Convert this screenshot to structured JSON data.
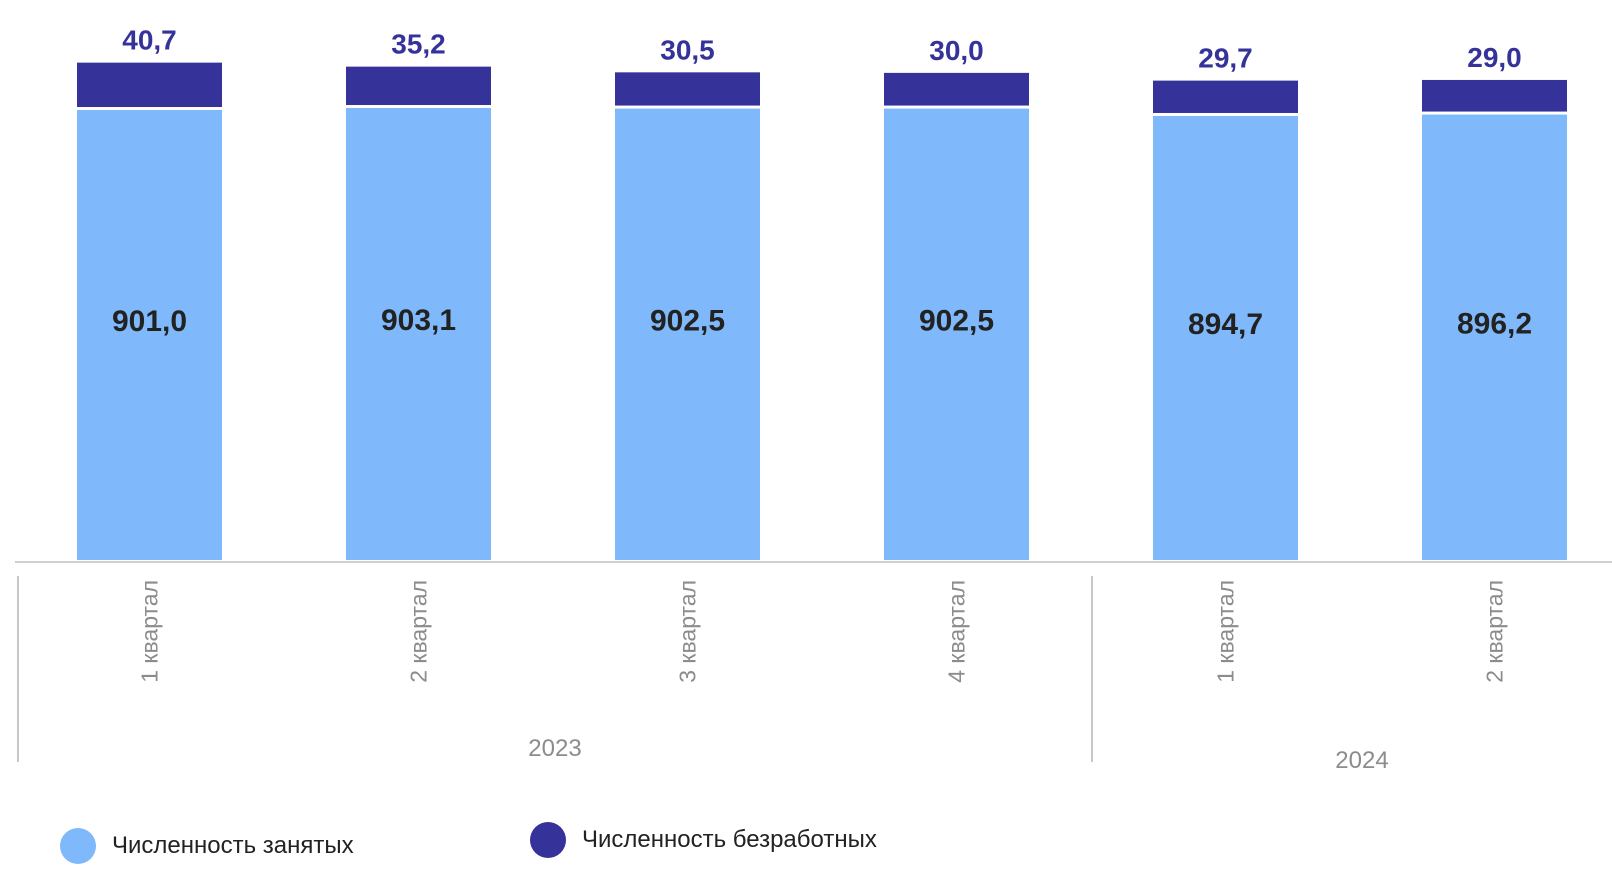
{
  "chart_data": {
    "type": "bar",
    "stacked": true,
    "categories": [
      "1 квартал",
      "2 квартал",
      "3 квартал",
      "4 квартал",
      "1 квартал",
      "2 квартал"
    ],
    "groups": [
      {
        "label": "2023",
        "count": 4
      },
      {
        "label": "2024",
        "count": 2
      }
    ],
    "series": [
      {
        "name": "Численность занятых",
        "color": "#7fb9fb",
        "values": [
          901.0,
          903.1,
          902.5,
          902.5,
          894.7,
          896.2
        ]
      },
      {
        "name": "Численность безработных",
        "color": "#35339a",
        "values": [
          40.7,
          35.2,
          30.5,
          30.0,
          29.7,
          29.0
        ]
      }
    ],
    "labels": {
      "employed": [
        "901,0",
        "903,1",
        "902,5",
        "902,5",
        "894,7",
        "896,2"
      ],
      "unemployed": [
        "40,7",
        "35,2",
        "30,5",
        "30,0",
        "29,7",
        "29,0"
      ]
    },
    "grid": false,
    "legend_position": "bottom"
  }
}
